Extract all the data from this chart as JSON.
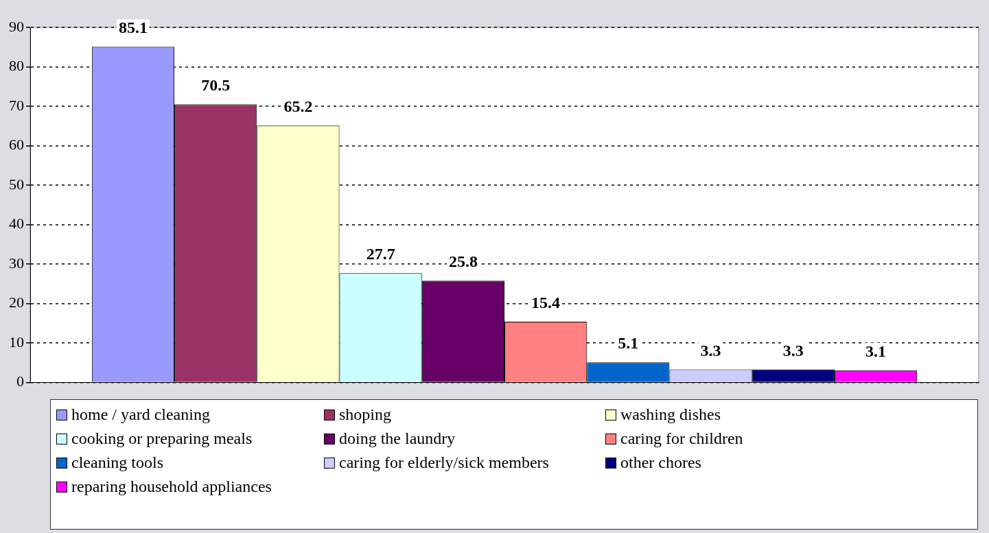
{
  "chart_data": {
    "type": "bar",
    "categories": [
      null
    ],
    "series": [
      {
        "name": "home / yard cleaning",
        "color": "#9999ff",
        "values": [
          85.1
        ]
      },
      {
        "name": "shoping",
        "color": "#993366",
        "values": [
          70.5
        ]
      },
      {
        "name": "washing dishes",
        "color": "#ffffcc",
        "values": [
          65.2
        ]
      },
      {
        "name": "cooking or preparing meals",
        "color": "#ccffff",
        "values": [
          27.7
        ]
      },
      {
        "name": "doing the laundry",
        "color": "#660066",
        "values": [
          25.8
        ]
      },
      {
        "name": "caring for children",
        "color": "#ff8080",
        "values": [
          15.4
        ]
      },
      {
        "name": "cleaning tools",
        "color": "#0066cc",
        "values": [
          5.1
        ]
      },
      {
        "name": "caring for elderly/sick members",
        "color": "#ccccff",
        "values": [
          3.3
        ]
      },
      {
        "name": "other chores",
        "color": "#000080",
        "values": [
          3.3
        ]
      },
      {
        "name": "reparing household appliances",
        "color": "#ff00ff",
        "values": [
          3.1
        ]
      }
    ],
    "ylim": [
      0,
      90
    ],
    "yticks": [
      0,
      10,
      20,
      30,
      40,
      50,
      60,
      70,
      80,
      90
    ],
    "grid": "y",
    "legend": "bottom",
    "data_labels": true
  }
}
